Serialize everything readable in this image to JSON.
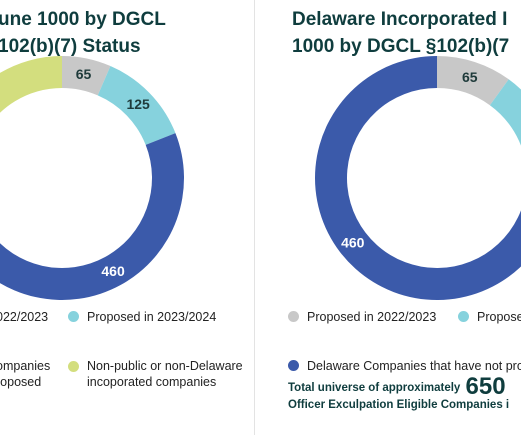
{
  "colors": {
    "gray": "#c8c8c8",
    "cyan": "#86d2dd",
    "blue": "#3b5aaa",
    "lime": "#d3de7e",
    "title": "#0f3d3e"
  },
  "chart_data": [
    {
      "type": "pie",
      "donut": true,
      "title_lines": [
        "une 1000 by DGCL",
        "102(b)(7)  Status"
      ],
      "slices": [
        {
          "value": 65,
          "label": "65",
          "color": "#c8c8c8"
        },
        {
          "value": 125,
          "label": "125",
          "color": "#86d2dd"
        },
        {
          "value": 460,
          "label": "460",
          "color": "#3b5aaa"
        },
        {
          "value": 350,
          "label": "",
          "color": "#d3de7e"
        }
      ],
      "legend": [
        {
          "label": "022/2023",
          "color": "#c8c8c8"
        },
        {
          "label": "Proposed in 2023/2024",
          "color": "#86d2dd"
        },
        {
          "label": "ompanies\nroposed",
          "color": "#3b5aaa"
        },
        {
          "label": "Non-public or non-Delaware\nincoporated companies",
          "color": "#d3de7e"
        }
      ]
    },
    {
      "type": "pie",
      "donut": true,
      "title_lines": [
        "Delaware Incorporated I",
        "1000 by DGCL §102(b)(7"
      ],
      "slices": [
        {
          "value": 65,
          "label": "65",
          "color": "#c8c8c8"
        },
        {
          "value": 125,
          "label": "",
          "color": "#86d2dd"
        },
        {
          "value": 460,
          "label": "460",
          "color": "#3b5aaa"
        }
      ],
      "legend": [
        {
          "label": "Proposed in 2022/2023",
          "color": "#c8c8c8"
        },
        {
          "label": "Propose",
          "color": "#86d2dd"
        },
        {
          "label": "Delaware Companies that have not prop",
          "color": "#3b5aaa"
        }
      ],
      "total_line1": "Total universe of approximately",
      "total_number": "650",
      "total_line2": "Officer Exculpation Eligible Companies i"
    }
  ]
}
